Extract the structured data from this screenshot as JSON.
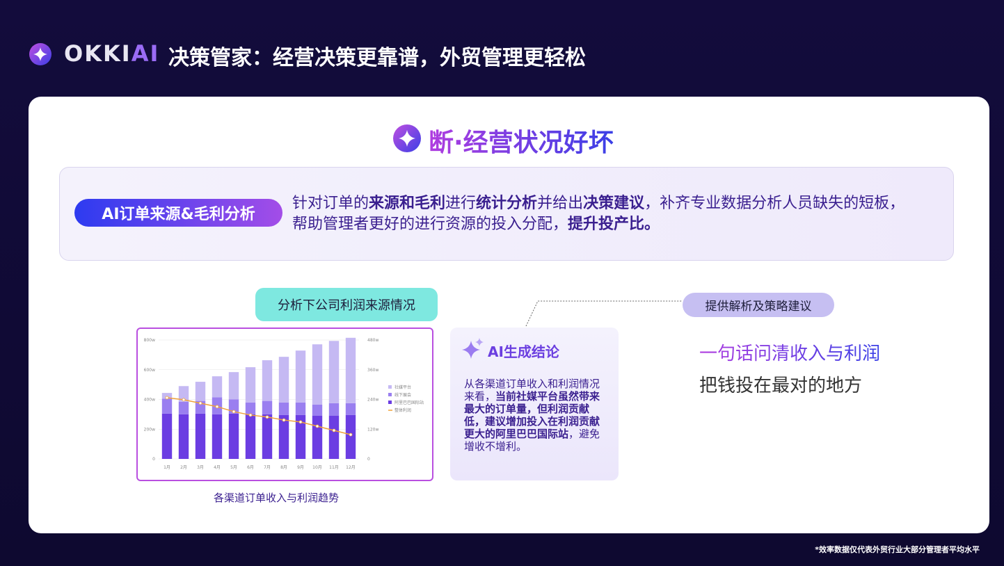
{
  "header": {
    "logo": [
      "OKKI",
      "AI"
    ],
    "title": "决策管家：经营决策更靠谱，外贸管理更轻松"
  },
  "section_title": "断·经营状况好坏",
  "feature": {
    "label": "AI订单来源&毛利分析",
    "description": [
      {
        "text": "针对订单的"
      },
      {
        "text": "来源和毛利",
        "bold": true
      },
      {
        "text": "进行"
      },
      {
        "text": "统计分析",
        "bold": true
      },
      {
        "text": "并给出"
      },
      {
        "text": "决策建议",
        "bold": true
      },
      {
        "text": "，补齐专业数据分析人员缺失的短板，帮助管理者更好的进行资源的投入分配，"
      },
      {
        "text": "提升投产比。",
        "bold": true
      }
    ]
  },
  "analysis_pill": "分析下公司利润来源情况",
  "ai_card": {
    "title": "AI生成结论",
    "text": [
      {
        "text": "从各渠道订单收入和利润情况来看，"
      },
      {
        "text": "当前社媒平台虽然带来最大的订单量，但利润贡献低，建议增加投入在利润贡献更大的阿里巴巴国际站",
        "bold": true
      },
      {
        "text": "，避免增收不增利。"
      }
    ]
  },
  "insight_pill": "提供解析及策略建议",
  "insights": [
    "一句话问清收入与利润",
    "把钱投在最对的地方"
  ],
  "footnote": "*效率数据仅代表外贸行业大部分管理者平均水平",
  "chart_data": {
    "type": "bar",
    "stacked": true,
    "title": "各渠道订单收入与利润趋势",
    "categories": [
      "1月",
      "2月",
      "3月",
      "4月",
      "5月",
      "6月",
      "7月",
      "8月",
      "9月",
      "10月",
      "11月",
      "12月"
    ],
    "series": [
      {
        "name": "社媒平台",
        "color": "#c5b9f3",
        "values": [
          39,
          105,
          129,
          141,
          184,
          237,
          274,
          307,
          349,
          406,
          419,
          440
        ]
      },
      {
        "name": "线下展会",
        "color": "#9a7ff0",
        "values": [
          100,
          85,
          85,
          115,
          95,
          80,
          90,
          85,
          85,
          75,
          85,
          80
        ]
      },
      {
        "name": "阿里巴巴国际站",
        "color": "#6b3de2",
        "values": [
          305,
          300,
          305,
          300,
          305,
          300,
          300,
          295,
          295,
          290,
          290,
          295
        ]
      },
      {
        "name": "整体利润",
        "color": "#f0a23a",
        "type": "line",
        "axis": "y2",
        "values": [
          247,
          239,
          225,
          211,
          191,
          177,
          169,
          157,
          149,
          132,
          115,
          98
        ]
      }
    ],
    "ylim": [
      0,
      800
    ],
    "yticks": [
      0,
      {
        "value": 200,
        "label": "200w"
      },
      {
        "value": 400,
        "label": "400w"
      },
      {
        "value": 600,
        "label": "600w"
      },
      {
        "value": 800,
        "label": "800w"
      }
    ],
    "y2lim": [
      0,
      480
    ],
    "y2ticks": [
      0,
      {
        "value": 120,
        "label": "120w"
      },
      {
        "value": 240,
        "label": "240w"
      },
      {
        "value": 360,
        "label": "360w"
      },
      {
        "value": 480,
        "label": "480w"
      }
    ],
    "grid": true,
    "legend": "right"
  }
}
